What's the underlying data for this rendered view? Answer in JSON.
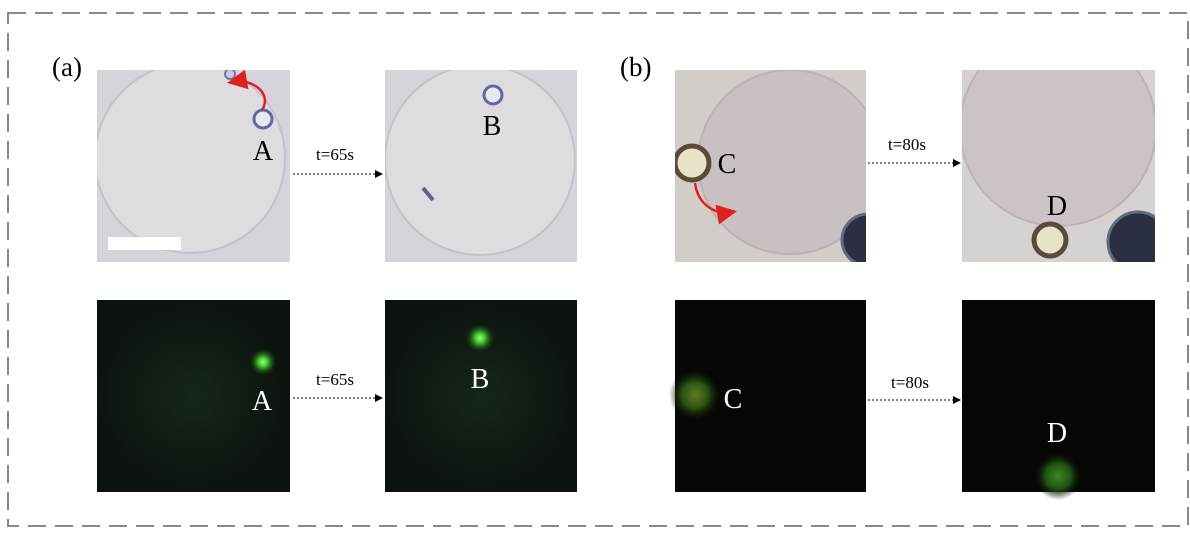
{
  "panels": [
    {
      "label": "(a)",
      "rows": [
        {
          "start_label": "A",
          "time": "t=65s",
          "end_label": "B"
        },
        {
          "start_label": "A",
          "time": "t=65s",
          "end_label": "B"
        }
      ]
    },
    {
      "label": "(b)",
      "rows": [
        {
          "start_label": "C",
          "time": "t=80s",
          "end_label": "D"
        },
        {
          "start_label": "C",
          "time": "t=80s",
          "end_label": "D"
        }
      ]
    }
  ]
}
